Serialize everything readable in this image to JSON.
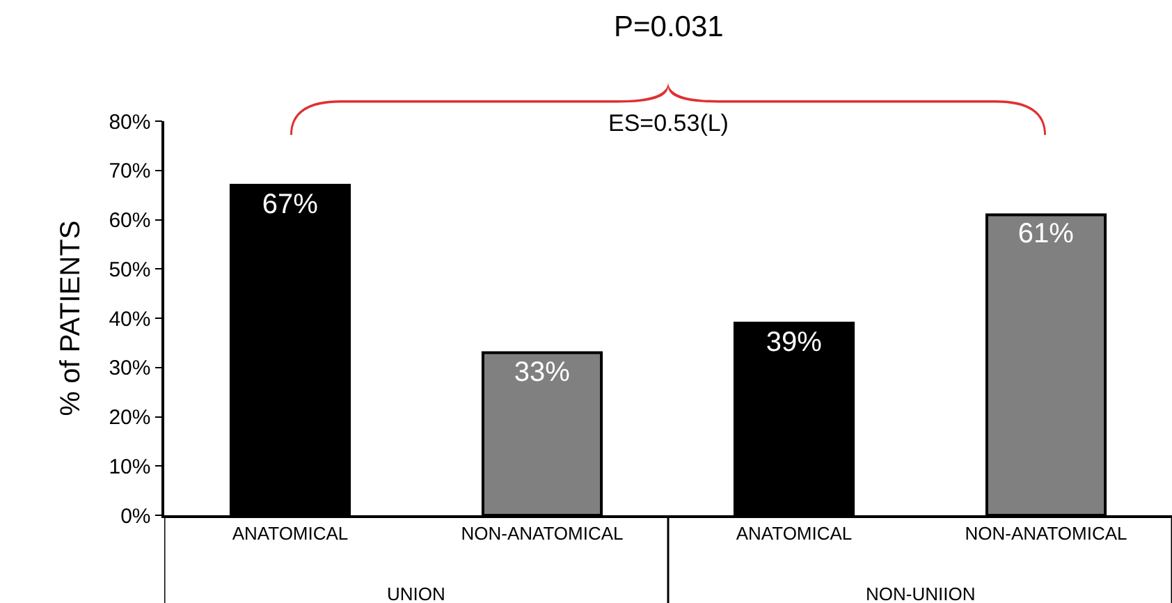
{
  "chart_data": {
    "type": "bar",
    "categories": [
      "ANATOMICAL",
      "NON-ANATOMICAL",
      "ANATOMICAL",
      "NON-ANATOMICAL"
    ],
    "values": [
      67,
      33,
      39,
      61
    ],
    "colors": [
      "#000000",
      "#808080",
      "#000000",
      "#808080"
    ],
    "value_labels": [
      "67%",
      "33%",
      "39%",
      "61%"
    ],
    "ylabel": "% of PATIENTS",
    "ylim": [
      0,
      80
    ],
    "yticks": [
      {
        "value": 0,
        "label": "0%"
      },
      {
        "value": 10,
        "label": "10%"
      },
      {
        "value": 20,
        "label": "20%"
      },
      {
        "value": 30,
        "label": "30%"
      },
      {
        "value": 40,
        "label": "40%"
      },
      {
        "value": 50,
        "label": "50%"
      },
      {
        "value": 60,
        "label": "60%"
      },
      {
        "value": 70,
        "label": "70%"
      },
      {
        "value": 80,
        "label": "80%"
      }
    ],
    "annotations": [
      "P=0.031",
      "ES=0.53(L)",
      "UNION",
      "NON-UNIION"
    ]
  }
}
